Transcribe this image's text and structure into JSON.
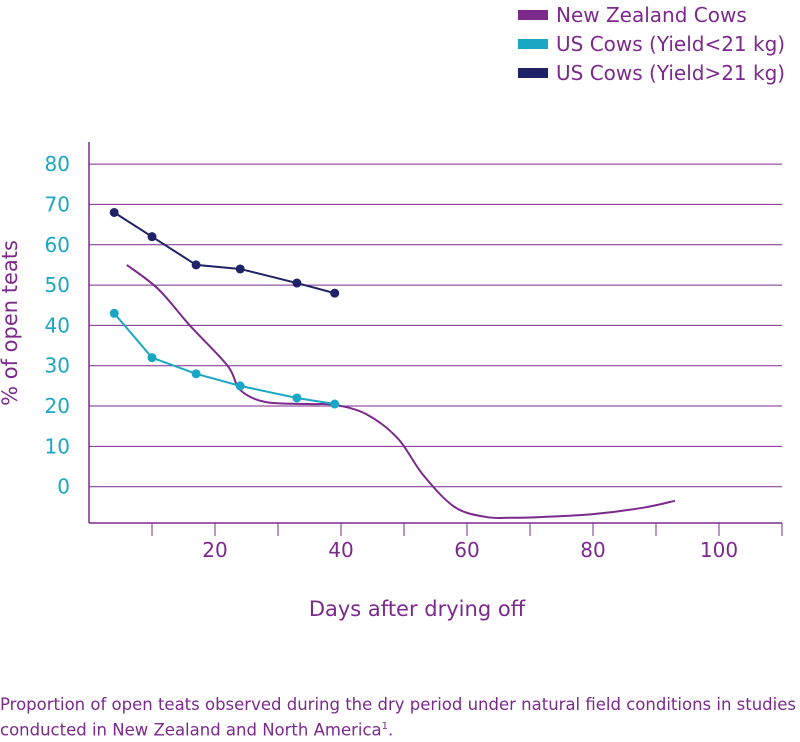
{
  "chart_data": {
    "type": "line",
    "xlabel": "Days after drying off",
    "ylabel": "% of open teats",
    "ylim": [
      -9,
      83
    ],
    "xlim": [
      0,
      110
    ],
    "y_ticks": [
      0,
      10,
      20,
      30,
      40,
      50,
      60,
      70,
      80
    ],
    "x_ticks": [
      20,
      40,
      60,
      80,
      100
    ],
    "grid": "horizontal",
    "legend_position": "top-right",
    "series": [
      {
        "name": "New Zealand Cows",
        "color": "#7b2a8c",
        "markers": false,
        "x": [
          6,
          11,
          16,
          22,
          24,
          28,
          35,
          39,
          44,
          49,
          53,
          58,
          63,
          67,
          72,
          80,
          88,
          93
        ],
        "y": [
          55,
          49,
          40,
          30,
          24,
          21,
          20.5,
          20.3,
          18,
          12,
          3,
          -5,
          -7.5,
          -7.7,
          -7.5,
          -6.8,
          -5.2,
          -3.5
        ]
      },
      {
        "name": "US Cows (Yield<21 kg)",
        "color": "#1aa7c4",
        "markers": true,
        "x": [
          4,
          10,
          17,
          24,
          33,
          39
        ],
        "y": [
          43,
          32,
          28,
          25,
          22,
          20.5
        ]
      },
      {
        "name": "US Cows (Yield>21 kg)",
        "color": "#1f2266",
        "markers": true,
        "x": [
          4,
          10,
          17,
          24,
          33,
          39
        ],
        "y": [
          68,
          62,
          55,
          54,
          50.5,
          48
        ]
      }
    ]
  },
  "caption": {
    "text": "Proportion of open teats observed during the dry period under natural field conditions in studies conducted in New Zealand and North America",
    "footnote": "1",
    "end": "."
  }
}
